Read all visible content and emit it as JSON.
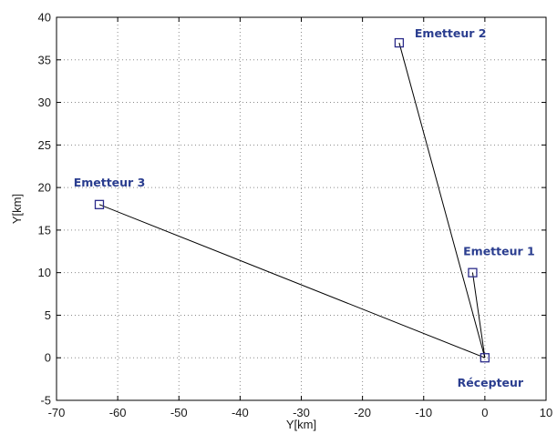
{
  "chart_data": {
    "type": "scatter",
    "title": "",
    "xlabel": "Y[km]",
    "ylabel": "Y[km]",
    "xlim": [
      -70,
      10
    ],
    "ylim": [
      -5,
      40
    ],
    "xticks": [
      -70,
      -60,
      -50,
      -40,
      -30,
      -20,
      -10,
      0,
      10
    ],
    "yticks": [
      -5,
      0,
      5,
      10,
      15,
      20,
      25,
      30,
      35,
      40
    ],
    "grid": true,
    "points": [
      {
        "label": "Récepteur",
        "x": 0,
        "y": 0
      },
      {
        "label": "Emetteur 1",
        "x": -2,
        "y": 10
      },
      {
        "label": "Emetteur 2",
        "x": -14,
        "y": 37
      },
      {
        "label": "Emetteur 3",
        "x": -63,
        "y": 18
      }
    ],
    "lines": [
      {
        "from": "Récepteur",
        "to": "Emetteur 1"
      },
      {
        "from": "Récepteur",
        "to": "Emetteur 2"
      },
      {
        "from": "Récepteur",
        "to": "Emetteur 3"
      }
    ],
    "colors": {
      "marker": "#2b2b8a",
      "label": "#2a3d8f",
      "line": "#000000",
      "grid": "#8a8a8a"
    }
  }
}
